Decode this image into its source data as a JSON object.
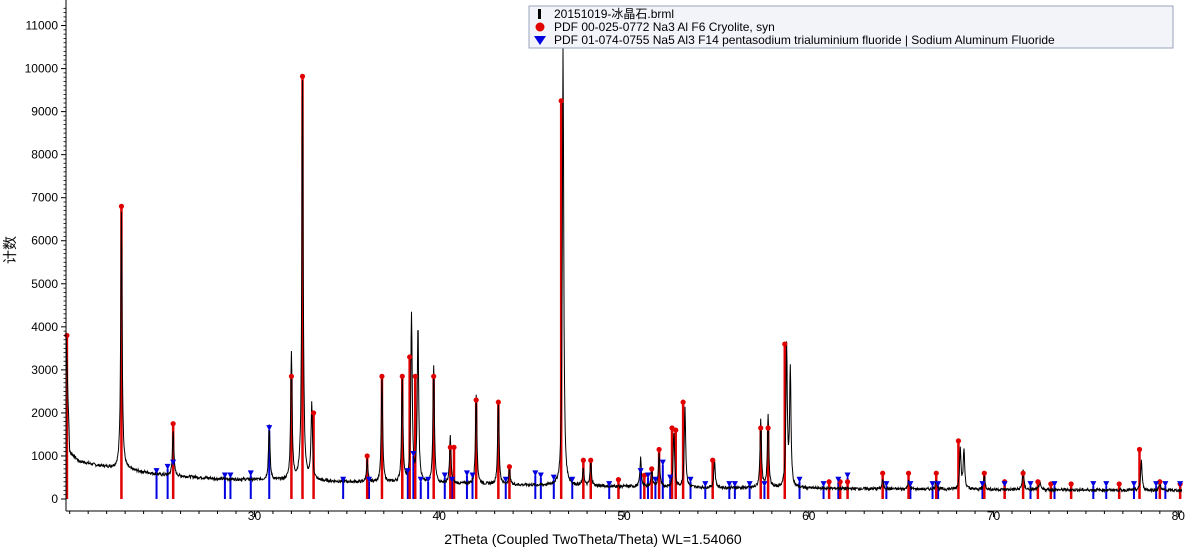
{
  "chart_data": {
    "type": "line",
    "xlabel": "2Theta (Coupled TwoTheta/Theta) WL=1.54060",
    "ylabel": "计数",
    "xlim": [
      19.8,
      80.2
    ],
    "ylim": [
      0,
      11500
    ],
    "x_ticks": [
      30,
      40,
      50,
      60,
      70,
      80
    ],
    "y_ticks": [
      0,
      1000,
      2000,
      3000,
      4000,
      5000,
      6000,
      7000,
      8000,
      9000,
      10000,
      11000
    ],
    "grid": false,
    "legend_position": "top-right",
    "legend": [
      {
        "label": "20151019-冰晶石.brml",
        "marker": "bar",
        "color": "#000000"
      },
      {
        "label": "PDF 00-025-0772 Na3 Al F6 Cryolite, syn",
        "marker": "circle",
        "color": "#e00000"
      },
      {
        "label": "PDF 01-074-0755 Na5 Al3 F14 pentasodium trialuminium fluoride | Sodium Aluminum Fluoride",
        "marker": "triangle-down",
        "color": "#0000e0"
      }
    ],
    "series": [
      {
        "name": "20151019-冰晶石.brml",
        "color": "#000000",
        "background": [
          [
            19.8,
            3900
          ],
          [
            20.0,
            1100
          ],
          [
            20.5,
            880
          ],
          [
            21.5,
            780
          ],
          [
            23.0,
            690
          ],
          [
            25.0,
            560
          ],
          [
            28.0,
            470
          ],
          [
            32.0,
            430
          ],
          [
            36.0,
            390
          ],
          [
            40.0,
            360
          ],
          [
            45.0,
            320
          ],
          [
            50.0,
            290
          ],
          [
            55.0,
            260
          ],
          [
            60.0,
            250
          ],
          [
            65.0,
            230
          ],
          [
            70.0,
            220
          ],
          [
            75.0,
            210
          ],
          [
            80.2,
            200
          ]
        ],
        "peaks": [
          {
            "x": 22.8,
            "y": 6700
          },
          {
            "x": 25.6,
            "y": 1600
          },
          {
            "x": 30.8,
            "y": 1750
          },
          {
            "x": 32.0,
            "y": 3400
          },
          {
            "x": 32.6,
            "y": 9700
          },
          {
            "x": 33.1,
            "y": 2200
          },
          {
            "x": 36.1,
            "y": 900
          },
          {
            "x": 36.9,
            "y": 2800
          },
          {
            "x": 38.0,
            "y": 2750
          },
          {
            "x": 38.5,
            "y": 4250
          },
          {
            "x": 38.85,
            "y": 4000
          },
          {
            "x": 39.7,
            "y": 3100
          },
          {
            "x": 40.6,
            "y": 1450
          },
          {
            "x": 42.0,
            "y": 2450
          },
          {
            "x": 43.2,
            "y": 2250
          },
          {
            "x": 43.8,
            "y": 700
          },
          {
            "x": 46.7,
            "y": 10500
          },
          {
            "x": 47.8,
            "y": 700
          },
          {
            "x": 48.2,
            "y": 850
          },
          {
            "x": 50.9,
            "y": 950
          },
          {
            "x": 51.5,
            "y": 700
          },
          {
            "x": 51.9,
            "y": 1050
          },
          {
            "x": 52.7,
            "y": 1550
          },
          {
            "x": 53.3,
            "y": 2150
          },
          {
            "x": 54.9,
            "y": 900
          },
          {
            "x": 57.4,
            "y": 1850
          },
          {
            "x": 57.8,
            "y": 1950
          },
          {
            "x": 58.8,
            "y": 3550
          },
          {
            "x": 59.0,
            "y": 2950
          },
          {
            "x": 64.0,
            "y": 450
          },
          {
            "x": 65.4,
            "y": 450
          },
          {
            "x": 66.9,
            "y": 450
          },
          {
            "x": 68.2,
            "y": 1200
          },
          {
            "x": 68.4,
            "y": 1150
          },
          {
            "x": 69.5,
            "y": 550
          },
          {
            "x": 71.6,
            "y": 700
          },
          {
            "x": 72.5,
            "y": 400
          },
          {
            "x": 78.0,
            "y": 900
          },
          {
            "x": 79.0,
            "y": 400
          }
        ]
      },
      {
        "name": "PDF 00-025-0772 Na3 Al F6 Cryolite, syn",
        "color": "#e00000",
        "sticks": [
          [
            19.85,
            3800
          ],
          [
            22.8,
            6800
          ],
          [
            25.6,
            1750
          ],
          [
            32.0,
            2850
          ],
          [
            32.6,
            9820
          ],
          [
            33.2,
            2000
          ],
          [
            36.1,
            1000
          ],
          [
            36.9,
            2850
          ],
          [
            38.0,
            2850
          ],
          [
            38.4,
            3300
          ],
          [
            38.7,
            2850
          ],
          [
            39.7,
            2850
          ],
          [
            40.6,
            1200
          ],
          [
            40.8,
            1200
          ],
          [
            42.0,
            2300
          ],
          [
            43.2,
            2250
          ],
          [
            43.8,
            750
          ],
          [
            46.6,
            9250
          ],
          [
            47.8,
            900
          ],
          [
            48.2,
            900
          ],
          [
            49.7,
            450
          ],
          [
            51.1,
            550
          ],
          [
            51.5,
            700
          ],
          [
            51.9,
            1150
          ],
          [
            52.6,
            1650
          ],
          [
            52.8,
            1600
          ],
          [
            53.2,
            2250
          ],
          [
            54.8,
            900
          ],
          [
            57.4,
            1650
          ],
          [
            57.8,
            1650
          ],
          [
            58.7,
            3600
          ],
          [
            61.1,
            400
          ],
          [
            61.7,
            400
          ],
          [
            62.1,
            400
          ],
          [
            64.0,
            600
          ],
          [
            65.4,
            600
          ],
          [
            66.9,
            600
          ],
          [
            68.1,
            1350
          ],
          [
            69.5,
            600
          ],
          [
            70.6,
            400
          ],
          [
            71.6,
            600
          ],
          [
            72.4,
            400
          ],
          [
            73.1,
            350
          ],
          [
            74.2,
            350
          ],
          [
            76.8,
            350
          ],
          [
            77.9,
            1150
          ],
          [
            79.0,
            400
          ],
          [
            80.1,
            350
          ]
        ]
      },
      {
        "name": "PDF 01-074-0755 Na5 Al3 F14 pentasodium trialuminium fluoride | Sodium Aluminum Fluoride",
        "color": "#0000e0",
        "sticks": [
          [
            24.7,
            600
          ],
          [
            25.3,
            700
          ],
          [
            25.6,
            800
          ],
          [
            28.4,
            500
          ],
          [
            28.7,
            500
          ],
          [
            29.8,
            550
          ],
          [
            30.8,
            1600
          ],
          [
            34.8,
            400
          ],
          [
            36.2,
            400
          ],
          [
            38.3,
            600
          ],
          [
            38.6,
            1000
          ],
          [
            39.0,
            400
          ],
          [
            39.4,
            400
          ],
          [
            40.3,
            500
          ],
          [
            40.7,
            400
          ],
          [
            41.5,
            550
          ],
          [
            41.8,
            500
          ],
          [
            43.6,
            400
          ],
          [
            45.2,
            550
          ],
          [
            45.5,
            500
          ],
          [
            46.2,
            450
          ],
          [
            47.2,
            400
          ],
          [
            49.2,
            300
          ],
          [
            50.9,
            600
          ],
          [
            51.3,
            500
          ],
          [
            51.7,
            400
          ],
          [
            52.1,
            800
          ],
          [
            52.5,
            450
          ],
          [
            53.6,
            400
          ],
          [
            54.4,
            300
          ],
          [
            55.7,
            300
          ],
          [
            56.0,
            300
          ],
          [
            56.8,
            300
          ],
          [
            57.6,
            300
          ],
          [
            59.5,
            400
          ],
          [
            60.8,
            300
          ],
          [
            61.6,
            400
          ],
          [
            62.1,
            500
          ],
          [
            64.2,
            300
          ],
          [
            65.5,
            300
          ],
          [
            66.7,
            300
          ],
          [
            67.0,
            300
          ],
          [
            69.4,
            300
          ],
          [
            70.6,
            300
          ],
          [
            72.0,
            300
          ],
          [
            73.3,
            300
          ],
          [
            75.4,
            300
          ],
          [
            76.1,
            300
          ],
          [
            77.6,
            300
          ],
          [
            78.8,
            300
          ],
          [
            79.3,
            300
          ],
          [
            80.1,
            300
          ]
        ]
      }
    ]
  }
}
